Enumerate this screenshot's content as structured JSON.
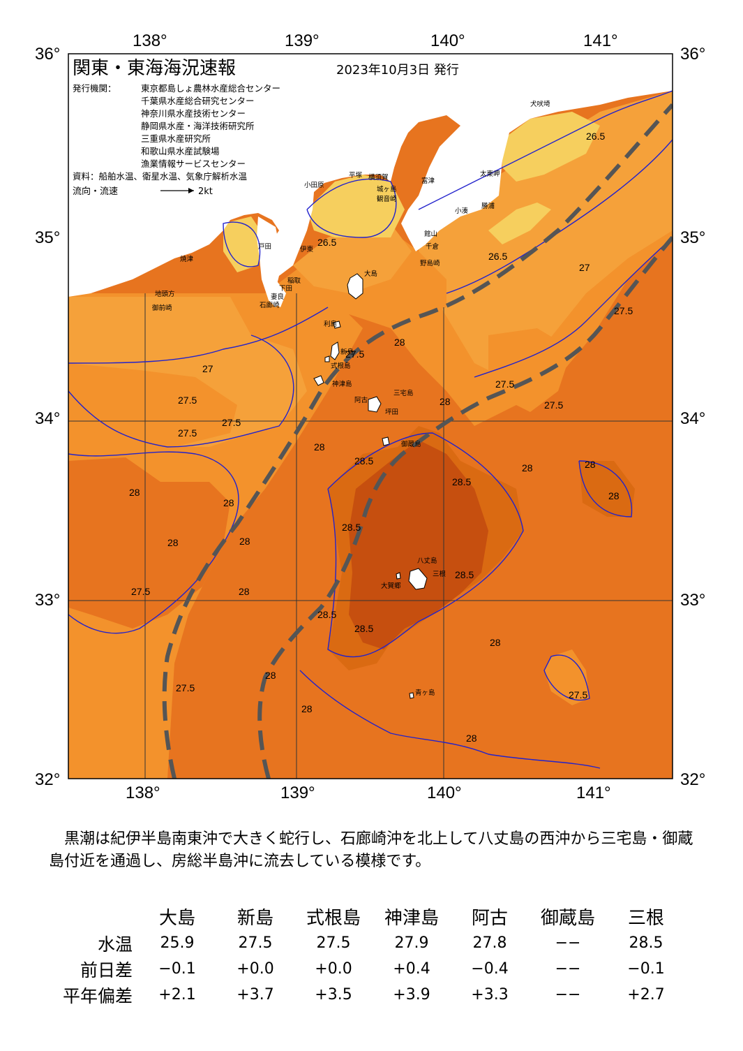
{
  "header": {
    "title": "関東・東海海況速報",
    "date": "2023年10月3日 発行",
    "issuer_label": "発行機関：",
    "issuers": [
      "東京都島しょ農林水産総合センター",
      "千葉県水産総合研究センター",
      "神奈川県水産技術センター",
      "静岡県水産・海洋技術研究所",
      "三重県水産研究所",
      "和歌山県水産試験場",
      "漁業情報サービスセンター"
    ],
    "source": "資料：船舶水温、衛星水温、気象庁解析水温",
    "flow_label": "流向・流速",
    "flow_scale": "2kt"
  },
  "axes": {
    "lon_labels": [
      "138°",
      "139°",
      "140°",
      "141°"
    ],
    "lat_labels": [
      "36°",
      "35°",
      "34°",
      "33°",
      "32°"
    ]
  },
  "contour_labels": [
    "26.5",
    "27",
    "27.5",
    "28",
    "28.5"
  ],
  "places": {
    "oshima": "大島",
    "toshima": "利島",
    "niijima": "新島",
    "shikinejima": "式根島",
    "kozushima": "神津島",
    "miyakejima": "三宅島",
    "ako": "阿古",
    "tsubota": "坪田",
    "mikurajima": "御蔵島",
    "hachijojima": "八丈島",
    "mitsune": "三根",
    "okago": "大賀郷",
    "aogashima": "青ヶ島",
    "nojimazaki": "野島崎",
    "chikura": "千倉",
    "tateyama": "館山",
    "katsuura": "勝浦",
    "kominato": "小湊",
    "taitomisaki": "太東岬",
    "inubosaki": "犬吠埼",
    "futtsu": "富津",
    "kannonzaki": "観音崎",
    "jogashima": "城ヶ島",
    "yokosuka": "横須賀",
    "hiratsuka": "平塚",
    "odawara": "小田原",
    "ito": "伊東",
    "inatori": "稲取",
    "shimoda": "下田",
    "mera": "妻良",
    "irozaki": "石廊崎",
    "heda": "戸田",
    "yaizu": "焼津",
    "jitogata": "地頭方",
    "omaezaki": "御前崎"
  },
  "summary": "黒潮は紀伊半島南東沖で大きく蛇行し、石廊崎沖を北上して八丈島の西沖から三宅島・御蔵島付近を通過し、房総半島沖に流去している模様です。",
  "table": {
    "columns": [
      "大島",
      "新島",
      "式根島",
      "神津島",
      "阿古",
      "御蔵島",
      "三根"
    ],
    "rows": [
      {
        "label": "水温",
        "values": [
          "25.9",
          "27.5",
          "27.5",
          "27.9",
          "27.8",
          "−−",
          "28.5"
        ]
      },
      {
        "label": "前日差",
        "values": [
          "−0.1",
          "+0.0",
          "+0.0",
          "+0.4",
          "−0.4",
          "−−",
          "−0.1"
        ]
      },
      {
        "label": "平年偏差",
        "values": [
          "+2.1",
          "+3.7",
          "+3.5",
          "+3.9",
          "+3.3",
          "−−",
          "+2.7"
        ]
      }
    ]
  },
  "colors": {
    "t26_5": "#f6cf5e",
    "t27": "#f5a13a",
    "t27_5": "#f3922c",
    "t28": "#e7741f",
    "t28_5": "#da6a12",
    "t28_5_core": "#c64f0f",
    "land": "#ffffff",
    "contour": "#2222cc",
    "kuroshio": "#555555"
  }
}
